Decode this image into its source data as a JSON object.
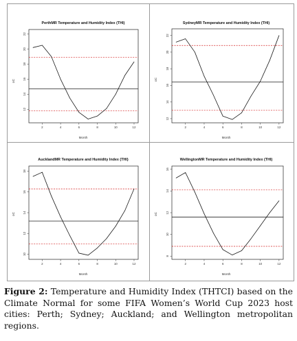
{
  "chart_data": [
    {
      "type": "line",
      "title": "PerthMR Temperature and Humidity Index (THI)",
      "xlabel": "Month",
      "ylabel": "oC",
      "x": [
        1,
        2,
        3,
        4,
        5,
        6,
        7,
        8,
        9,
        10,
        11,
        12
      ],
      "values": [
        20.2,
        20.5,
        19.0,
        16.0,
        13.5,
        11.6,
        10.7,
        11.1,
        12.1,
        14.0,
        16.5,
        18.3
      ],
      "ylim": [
        10.2,
        22.6
      ],
      "yticks": [
        12,
        14,
        16,
        18,
        20,
        22
      ],
      "xticks": [
        2,
        4,
        6,
        8,
        10,
        12
      ],
      "reference_lines": [
        {
          "value": 14.7,
          "style": "solid",
          "color": "#222222"
        },
        {
          "value": 18.9,
          "style": "dashed",
          "color": "#d32020"
        },
        {
          "value": 11.8,
          "style": "dashed",
          "color": "#d32020"
        }
      ]
    },
    {
      "type": "line",
      "title": "SydneyMR Temperature and Humidity Index (THI)",
      "xlabel": "Month",
      "ylabel": "oC",
      "x": [
        1,
        2,
        3,
        4,
        5,
        6,
        7,
        8,
        9,
        10,
        11,
        12
      ],
      "values": [
        21.2,
        21.6,
        20.0,
        17.1,
        14.8,
        12.3,
        11.9,
        12.7,
        14.7,
        16.5,
        19.0,
        22.0
      ],
      "ylim": [
        11.5,
        22.8
      ],
      "yticks": [
        12,
        14,
        16,
        18,
        20,
        22
      ],
      "xticks": [
        2,
        4,
        6,
        8,
        10,
        12
      ],
      "reference_lines": [
        {
          "value": 16.4,
          "style": "solid",
          "color": "#222222"
        },
        {
          "value": 20.8,
          "style": "dashed",
          "color": "#d32020"
        },
        {
          "value": 13.0,
          "style": "dashed",
          "color": "#d32020"
        }
      ]
    },
    {
      "type": "line",
      "title": "AucklandMR Temperature and Humidity Index (THI)",
      "xlabel": "Month",
      "ylabel": "oC",
      "x": [
        1,
        2,
        3,
        4,
        5,
        6,
        7,
        8,
        9,
        10,
        11,
        12
      ],
      "values": [
        17.5,
        17.9,
        15.6,
        13.6,
        11.8,
        10.1,
        9.9,
        10.6,
        11.5,
        12.7,
        14.2,
        16.3
      ],
      "ylim": [
        9.5,
        18.5
      ],
      "yticks": [
        10,
        12,
        14,
        16,
        18
      ],
      "xticks": [
        2,
        4,
        6,
        8,
        10,
        12
      ],
      "reference_lines": [
        {
          "value": 13.2,
          "style": "solid",
          "color": "#222222"
        },
        {
          "value": 16.3,
          "style": "dashed",
          "color": "#d32020"
        },
        {
          "value": 11.0,
          "style": "dashed",
          "color": "#d32020"
        }
      ]
    },
    {
      "type": "line",
      "title": "WellingtonMR Temperature and Humidity Index (THI)",
      "xlabel": "Month",
      "ylabel": "oC",
      "x": [
        1,
        2,
        3,
        4,
        5,
        6,
        7,
        8,
        9,
        10,
        11,
        12
      ],
      "values": [
        15.2,
        15.7,
        13.9,
        11.9,
        10.1,
        8.6,
        8.1,
        8.5,
        9.6,
        10.8,
        12.0,
        13.1
      ],
      "ylim": [
        7.7,
        16.3
      ],
      "yticks": [
        8,
        10,
        12,
        14,
        16
      ],
      "xticks": [
        2,
        4,
        6,
        8,
        10,
        12
      ],
      "reference_lines": [
        {
          "value": 11.6,
          "style": "solid",
          "color": "#222222"
        },
        {
          "value": 14.1,
          "style": "dashed",
          "color": "#d32020"
        },
        {
          "value": 8.9,
          "style": "dashed",
          "color": "#d32020"
        }
      ]
    }
  ],
  "caption": {
    "label": "Figure 2:",
    "text": "Temperature and Humidity Index (THTCI) based on the Climate Normal for some FIFA Women’s World Cup 2023 host cities: Perth; Sydney; Auckland; and Wellington metropolitan regions."
  }
}
